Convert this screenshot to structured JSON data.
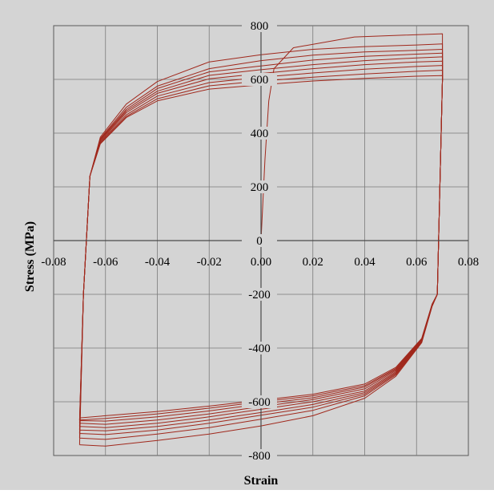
{
  "chart_data": {
    "type": "line",
    "title": "",
    "xlabel": "Strain",
    "ylabel": "Stress (MPa)",
    "xlim": [
      -0.08,
      0.08
    ],
    "ylim": [
      -800,
      800
    ],
    "x_ticks": [
      -0.08,
      -0.06,
      -0.04,
      -0.02,
      0.0,
      0.02,
      0.04,
      0.06,
      0.08
    ],
    "x_tick_labels": [
      "-0.08",
      "-0.06",
      "-0.04",
      "-0.02",
      "0.00",
      "0.02",
      "0.04",
      "0.06",
      "0.08"
    ],
    "y_ticks": [
      -800,
      -600,
      -400,
      -200,
      0,
      200,
      400,
      600,
      800
    ],
    "y_tick_labels": [
      "-800",
      "-600",
      "-400",
      "-200",
      "0",
      "200",
      "400",
      "600",
      "800"
    ],
    "grid": true,
    "legend": "none",
    "colors": {
      "background": "#d4d4d4",
      "plot_area": "#d4d4d4",
      "grid": "#7a7a7a",
      "line": "#a0281c",
      "text": "#000000"
    },
    "series": [
      {
        "values": [
          [
            0.0,
            0.0
          ],
          [
            0.0015,
            300
          ],
          [
            0.003,
            520
          ],
          [
            0.005,
            640
          ],
          [
            0.0125,
            718
          ],
          [
            0.036,
            758
          ],
          [
            0.07,
            770
          ],
          [
            0.07,
            600
          ],
          [
            0.068,
            -200
          ],
          [
            0.066,
            -245
          ],
          [
            0.062,
            -380
          ],
          [
            0.052,
            -505
          ],
          [
            0.04,
            -587
          ],
          [
            0.02,
            -652
          ],
          [
            0.0,
            -690
          ],
          [
            -0.02,
            -720
          ],
          [
            -0.04,
            -744
          ],
          [
            -0.06,
            -765
          ],
          [
            -0.07,
            -760
          ]
        ]
      },
      {
        "values": [
          [
            -0.07,
            -760
          ],
          [
            -0.0685,
            -200
          ],
          [
            -0.066,
            240
          ],
          [
            -0.062,
            385
          ],
          [
            -0.052,
            508
          ],
          [
            -0.04,
            592
          ],
          [
            -0.02,
            665
          ],
          [
            0.0,
            692
          ],
          [
            0.02,
            712
          ],
          [
            0.04,
            722
          ],
          [
            0.06,
            728
          ],
          [
            0.07,
            732
          ],
          [
            0.07,
            600
          ],
          [
            0.068,
            -200
          ],
          [
            0.066,
            -243
          ],
          [
            0.062,
            -378
          ],
          [
            0.052,
            -500
          ],
          [
            0.04,
            -578
          ],
          [
            0.02,
            -632
          ],
          [
            0.0,
            -665
          ],
          [
            -0.02,
            -696
          ],
          [
            -0.04,
            -720
          ],
          [
            -0.06,
            -740
          ],
          [
            -0.07,
            -735
          ]
        ]
      },
      {
        "values": [
          [
            -0.07,
            -735
          ],
          [
            -0.0685,
            -200
          ],
          [
            -0.066,
            240
          ],
          [
            -0.062,
            380
          ],
          [
            -0.052,
            496
          ],
          [
            -0.04,
            575
          ],
          [
            -0.02,
            640
          ],
          [
            0.0,
            670
          ],
          [
            0.02,
            690
          ],
          [
            0.04,
            702
          ],
          [
            0.06,
            708
          ],
          [
            0.07,
            712
          ],
          [
            0.07,
            600
          ],
          [
            0.068,
            -200
          ],
          [
            0.066,
            -242
          ],
          [
            0.062,
            -376
          ],
          [
            0.052,
            -496
          ],
          [
            0.04,
            -572
          ],
          [
            0.02,
            -620
          ],
          [
            0.0,
            -650
          ],
          [
            -0.02,
            -680
          ],
          [
            -0.04,
            -705
          ],
          [
            -0.06,
            -722
          ],
          [
            -0.07,
            -718
          ]
        ]
      },
      {
        "values": [
          [
            -0.07,
            -718
          ],
          [
            -0.0685,
            -200
          ],
          [
            -0.066,
            240
          ],
          [
            -0.062,
            377
          ],
          [
            -0.052,
            488
          ],
          [
            -0.04,
            566
          ],
          [
            -0.02,
            628
          ],
          [
            0.0,
            650
          ],
          [
            0.02,
            672
          ],
          [
            0.04,
            686
          ],
          [
            0.06,
            694
          ],
          [
            0.07,
            698
          ],
          [
            0.07,
            600
          ],
          [
            0.068,
            -200
          ],
          [
            0.066,
            -241
          ],
          [
            0.062,
            -374
          ],
          [
            0.052,
            -492
          ],
          [
            0.04,
            -566
          ],
          [
            0.02,
            -610
          ],
          [
            0.0,
            -640
          ],
          [
            -0.02,
            -668
          ],
          [
            -0.04,
            -692
          ],
          [
            -0.06,
            -708
          ],
          [
            -0.07,
            -705
          ]
        ]
      },
      {
        "values": [
          [
            -0.07,
            -705
          ],
          [
            -0.0685,
            -200
          ],
          [
            -0.066,
            240
          ],
          [
            -0.062,
            374
          ],
          [
            -0.052,
            482
          ],
          [
            -0.04,
            556
          ],
          [
            -0.02,
            615
          ],
          [
            0.0,
            636
          ],
          [
            0.02,
            655
          ],
          [
            0.04,
            670
          ],
          [
            0.06,
            680
          ],
          [
            0.07,
            684
          ],
          [
            0.07,
            600
          ],
          [
            0.068,
            -200
          ],
          [
            0.066,
            -240
          ],
          [
            0.062,
            -372
          ],
          [
            0.052,
            -488
          ],
          [
            0.04,
            -560
          ],
          [
            0.02,
            -600
          ],
          [
            0.0,
            -628
          ],
          [
            -0.02,
            -656
          ],
          [
            -0.04,
            -680
          ],
          [
            -0.06,
            -696
          ],
          [
            -0.07,
            -692
          ]
        ]
      },
      {
        "values": [
          [
            -0.07,
            -692
          ],
          [
            -0.0685,
            -200
          ],
          [
            -0.066,
            240
          ],
          [
            -0.062,
            370
          ],
          [
            -0.052,
            476
          ],
          [
            -0.04,
            548
          ],
          [
            -0.02,
            602
          ],
          [
            0.0,
            622
          ],
          [
            0.02,
            640
          ],
          [
            0.04,
            655
          ],
          [
            0.06,
            665
          ],
          [
            0.07,
            668
          ],
          [
            0.07,
            600
          ],
          [
            0.068,
            -200
          ],
          [
            0.066,
            -239
          ],
          [
            0.062,
            -370
          ],
          [
            0.052,
            -484
          ],
          [
            0.04,
            -552
          ],
          [
            0.02,
            -592
          ],
          [
            0.0,
            -618
          ],
          [
            -0.02,
            -645
          ],
          [
            -0.04,
            -668
          ],
          [
            -0.06,
            -684
          ],
          [
            -0.07,
            -680
          ]
        ]
      },
      {
        "values": [
          [
            -0.07,
            -680
          ],
          [
            -0.0685,
            -200
          ],
          [
            -0.066,
            240
          ],
          [
            -0.062,
            366
          ],
          [
            -0.052,
            468
          ],
          [
            -0.04,
            538
          ],
          [
            -0.02,
            588
          ],
          [
            0.0,
            608
          ],
          [
            0.02,
            624
          ],
          [
            0.04,
            638
          ],
          [
            0.06,
            648
          ],
          [
            0.07,
            652
          ],
          [
            0.07,
            600
          ],
          [
            0.068,
            -200
          ],
          [
            0.066,
            -238
          ],
          [
            0.062,
            -368
          ],
          [
            0.052,
            -480
          ],
          [
            0.04,
            -545
          ],
          [
            0.02,
            -585
          ],
          [
            0.0,
            -608
          ],
          [
            -0.02,
            -634
          ],
          [
            -0.04,
            -656
          ],
          [
            -0.06,
            -672
          ],
          [
            -0.07,
            -670
          ]
        ]
      },
      {
        "values": [
          [
            -0.07,
            -670
          ],
          [
            -0.0685,
            -200
          ],
          [
            -0.066,
            240
          ],
          [
            -0.062,
            362
          ],
          [
            -0.052,
            462
          ],
          [
            -0.04,
            528
          ],
          [
            -0.02,
            576
          ],
          [
            0.0,
            594
          ],
          [
            0.02,
            608
          ],
          [
            0.04,
            620
          ],
          [
            0.06,
            630
          ],
          [
            0.07,
            634
          ],
          [
            0.07,
            600
          ],
          [
            0.068,
            -200
          ],
          [
            0.066,
            -237
          ],
          [
            0.062,
            -366
          ],
          [
            0.052,
            -476
          ],
          [
            0.04,
            -540
          ],
          [
            0.02,
            -578
          ],
          [
            0.0,
            -600
          ],
          [
            -0.02,
            -624
          ],
          [
            -0.04,
            -645
          ],
          [
            -0.06,
            -662
          ],
          [
            -0.07,
            -668
          ]
        ]
      },
      {
        "values": [
          [
            -0.07,
            -668
          ],
          [
            -0.0685,
            -200
          ],
          [
            -0.066,
            240
          ],
          [
            -0.062,
            360
          ],
          [
            -0.052,
            458
          ],
          [
            -0.04,
            520
          ],
          [
            -0.02,
            564
          ],
          [
            0.0,
            580
          ],
          [
            0.02,
            594
          ],
          [
            0.04,
            604
          ],
          [
            0.06,
            612
          ],
          [
            0.07,
            614
          ],
          [
            0.07,
            600
          ],
          [
            0.068,
            -200
          ],
          [
            0.066,
            -236
          ],
          [
            0.062,
            -364
          ],
          [
            0.052,
            -472
          ],
          [
            0.04,
            -534
          ],
          [
            0.02,
            -572
          ],
          [
            0.0,
            -594
          ],
          [
            -0.02,
            -616
          ],
          [
            -0.04,
            -636
          ],
          [
            -0.06,
            -652
          ],
          [
            -0.07,
            -660
          ]
        ]
      }
    ]
  }
}
